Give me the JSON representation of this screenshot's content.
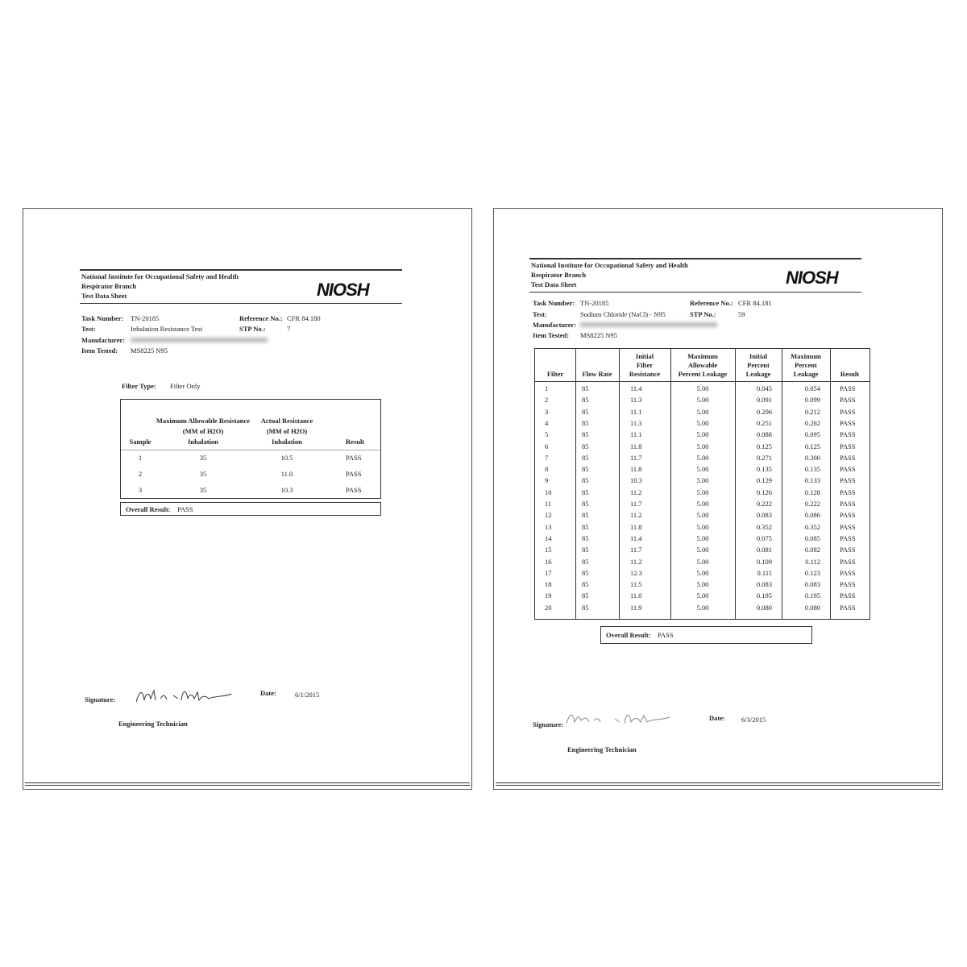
{
  "pages": [
    {
      "header": {
        "lines": [
          "National Institute for Occupational Safety and Health",
          "Respirator Branch",
          "Test Data Sheet"
        ],
        "logo": "NIOSH"
      },
      "fields": {
        "task_number": {
          "label": "Task Number:",
          "value": "TN-20185"
        },
        "reference_no": {
          "label": "Reference No.:",
          "value": "CFR 84.180"
        },
        "test": {
          "label": "Test:",
          "value": "Inhalation Resistance Test"
        },
        "stp_no": {
          "label": "STP No.:",
          "value": "7"
        },
        "manufacturer": {
          "label": "Manufacturer:"
        },
        "item_tested": {
          "label": "Item Tested:",
          "value": "MS8225 N95"
        }
      },
      "filter_type": {
        "label": "Filter Type:",
        "value": "Filter Only"
      },
      "table": {
        "columns": [
          [
            "Sample"
          ],
          [
            "Maximum Allowable Resistance",
            "(MM of H2O)",
            "Inhalation"
          ],
          [
            "Actual Resistance",
            "(MM of H2O)",
            "Inhalation"
          ],
          [
            "Result"
          ]
        ],
        "rows": [
          [
            "1",
            "35",
            "10.5",
            "PASS"
          ],
          [
            "2",
            "35",
            "11.0",
            "PASS"
          ],
          [
            "3",
            "35",
            "10.3",
            "PASS"
          ]
        ]
      },
      "overall_result": {
        "label": "Overall Result:",
        "value": "PASS"
      },
      "signature": {
        "label": "Signature:",
        "title": "Engineering Technician"
      },
      "date": {
        "label": "Date:",
        "value": "6/1/2015"
      }
    },
    {
      "header": {
        "lines": [
          "National Institute for Occupational Safety and Health",
          "Respirator Branch",
          "Test Data Sheet"
        ],
        "logo": "NIOSH"
      },
      "fields": {
        "task_number": {
          "label": "Task Number:",
          "value": "TN-20185"
        },
        "reference_no": {
          "label": "Reference No.:",
          "value": "CFR 84.181"
        },
        "test": {
          "label": "Test:",
          "value": "Sodium Chloride  (NaCl) - N95"
        },
        "stp_no": {
          "label": "STP No.:",
          "value": "59"
        },
        "manufacturer": {
          "label": "Manufacturer:"
        },
        "item_tested": {
          "label": "Item Tested:",
          "value": "MS8225 N95"
        }
      },
      "table": {
        "columns": [
          [
            "Filter"
          ],
          [
            "Flow Rate"
          ],
          [
            "Initial",
            "Filter",
            "Resistance"
          ],
          [
            "Maximum",
            "Allowable",
            "Percent Leakage"
          ],
          [
            "Initial",
            "Percent",
            "Leakage"
          ],
          [
            "Maximum",
            "Percent",
            "Leakage"
          ],
          [
            "Result"
          ]
        ],
        "rows": [
          [
            "1",
            "85",
            "11.4",
            "5.00",
            "0.045",
            "0.054",
            "PASS"
          ],
          [
            "2",
            "85",
            "11.3",
            "5.00",
            "0.091",
            "0.099",
            "PASS"
          ],
          [
            "3",
            "85",
            "11.1",
            "5.00",
            "0.206",
            "0.212",
            "PASS"
          ],
          [
            "4",
            "85",
            "11.3",
            "5.00",
            "0.251",
            "0.262",
            "PASS"
          ],
          [
            "5",
            "85",
            "11.1",
            "5.00",
            "0.088",
            "0.095",
            "PASS"
          ],
          [
            "6",
            "85",
            "11.8",
            "5.00",
            "0.125",
            "0.125",
            "PASS"
          ],
          [
            "7",
            "85",
            "11.7",
            "5.00",
            "0.271",
            "0.300",
            "PASS"
          ],
          [
            "8",
            "85",
            "11.8",
            "5.00",
            "0.135",
            "0.135",
            "PASS"
          ],
          [
            "9",
            "85",
            "10.3",
            "5.00",
            "0.129",
            "0.133",
            "PASS"
          ],
          [
            "10",
            "85",
            "11.2",
            "5.00",
            "0.126",
            "0.128",
            "PASS"
          ],
          [
            "11",
            "85",
            "11.7",
            "5.00",
            "0.222",
            "0.222",
            "PASS"
          ],
          [
            "12",
            "85",
            "11.2",
            "5.00",
            "0.083",
            "0.086",
            "PASS"
          ],
          [
            "13",
            "85",
            "11.8",
            "5.00",
            "0.352",
            "0.352",
            "PASS"
          ],
          [
            "14",
            "85",
            "11.4",
            "5.00",
            "0.075",
            "0.085",
            "PASS"
          ],
          [
            "15",
            "85",
            "11.7",
            "5.00",
            "0.081",
            "0.082",
            "PASS"
          ],
          [
            "16",
            "85",
            "11.2",
            "5.00",
            "0.109",
            "0.112",
            "PASS"
          ],
          [
            "17",
            "85",
            "12.3",
            "5.00",
            "0.111",
            "0.123",
            "PASS"
          ],
          [
            "18",
            "85",
            "11.5",
            "5.00",
            "0.083",
            "0.083",
            "PASS"
          ],
          [
            "19",
            "85",
            "11.0",
            "5.00",
            "0.195",
            "0.195",
            "PASS"
          ],
          [
            "20",
            "85",
            "11.9",
            "5.00",
            "0.080",
            "0.080",
            "PASS"
          ]
        ]
      },
      "overall_result": {
        "label": "Overall Result:",
        "value": "PASS"
      },
      "signature": {
        "label": "Signature:",
        "title": "Engineering Technician"
      },
      "date": {
        "label": "Date:",
        "value": "6/3/2015"
      }
    }
  ]
}
